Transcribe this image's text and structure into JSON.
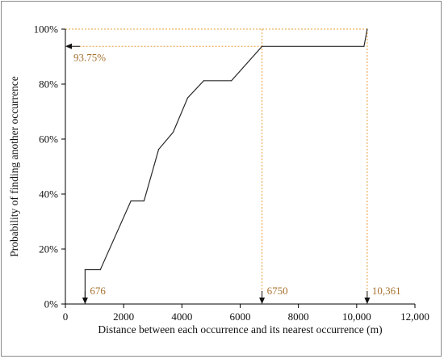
{
  "chart_data": {
    "type": "line",
    "xlabel": "Distance between each occurrence and its nearest occurrence (m)",
    "ylabel": "Probability of finding another occurrence",
    "xlim": [
      0,
      12000
    ],
    "ylim": [
      0,
      100
    ],
    "x_ticks": [
      0,
      2000,
      4000,
      6000,
      8000,
      10000,
      12000
    ],
    "x_tick_labels": [
      "0",
      "2000",
      "4000",
      "6000",
      "8000",
      "10,000",
      "12,000"
    ],
    "y_ticks": [
      0,
      20,
      40,
      60,
      80,
      100
    ],
    "y_tick_labels": [
      "0%",
      "20%",
      "40%",
      "60%",
      "80%",
      "100%"
    ],
    "grid": false,
    "series": [
      {
        "x": [
          676,
          676,
          1200,
          2250,
          2700,
          3200,
          3700,
          4200,
          4750,
          5700,
          6750,
          10250,
          10361
        ],
        "y": [
          0,
          12.5,
          12.5,
          37.5,
          37.5,
          56.25,
          62.5,
          75,
          81.25,
          81.25,
          93.75,
          93.75,
          100
        ]
      }
    ],
    "annotations": [
      {
        "label": "676",
        "x": 676,
        "kind": "x-marker"
      },
      {
        "label": "6750",
        "x": 6750,
        "kind": "x-marker"
      },
      {
        "label": "10,361",
        "x": 10361,
        "kind": "x-marker"
      },
      {
        "label": "93.75%",
        "y": 93.75,
        "kind": "y-marker"
      }
    ],
    "colors": {
      "line": "#2a2a2a",
      "guide": "#e8a03c",
      "annotation_text": "#a8712e"
    }
  }
}
